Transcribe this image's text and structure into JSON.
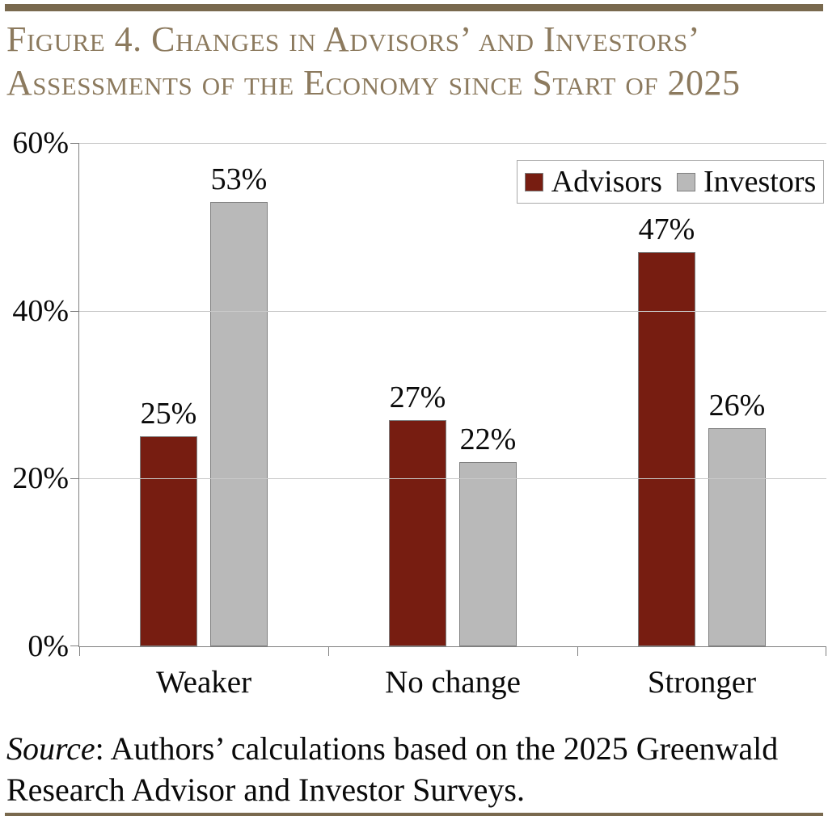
{
  "header": {
    "title_line1": "Figure 4. Changes in Advisors’ and Investors’",
    "title_line2": "Assessments of the Economy since Start of 2025",
    "title_color": "#8C7A5E",
    "rule_color": "#79694E"
  },
  "chart_data": {
    "type": "bar",
    "categories": [
      "Weaker",
      "No change",
      "Stronger"
    ],
    "series": [
      {
        "name": "Advisors",
        "values": [
          25,
          27,
          47
        ],
        "color": "#771D11"
      },
      {
        "name": "Investors",
        "values": [
          53,
          22,
          26
        ],
        "color": "#B9B9B9"
      }
    ],
    "value_suffix": "%",
    "data_labels": [
      "25%",
      "53%",
      "27%",
      "22%",
      "47%",
      "26%"
    ],
    "ylim": [
      0,
      60
    ],
    "yticks": [
      0,
      20,
      40,
      60
    ],
    "ytick_labels": [
      "0%",
      "20%",
      "40%",
      "60%"
    ],
    "grid": "horizontal",
    "legend_position": "top-right",
    "bar_border_color": "#7F7F7F",
    "axis_color": "#808080",
    "gridline_color": "#C9C9C9",
    "label_color": "#0A0A0A"
  },
  "source": {
    "label": "Source",
    "separator": ":",
    "line1_rest": " Authors’ calculations based on the 2025 Greenwald",
    "line2": "Research Advisor and Investor Surveys."
  }
}
